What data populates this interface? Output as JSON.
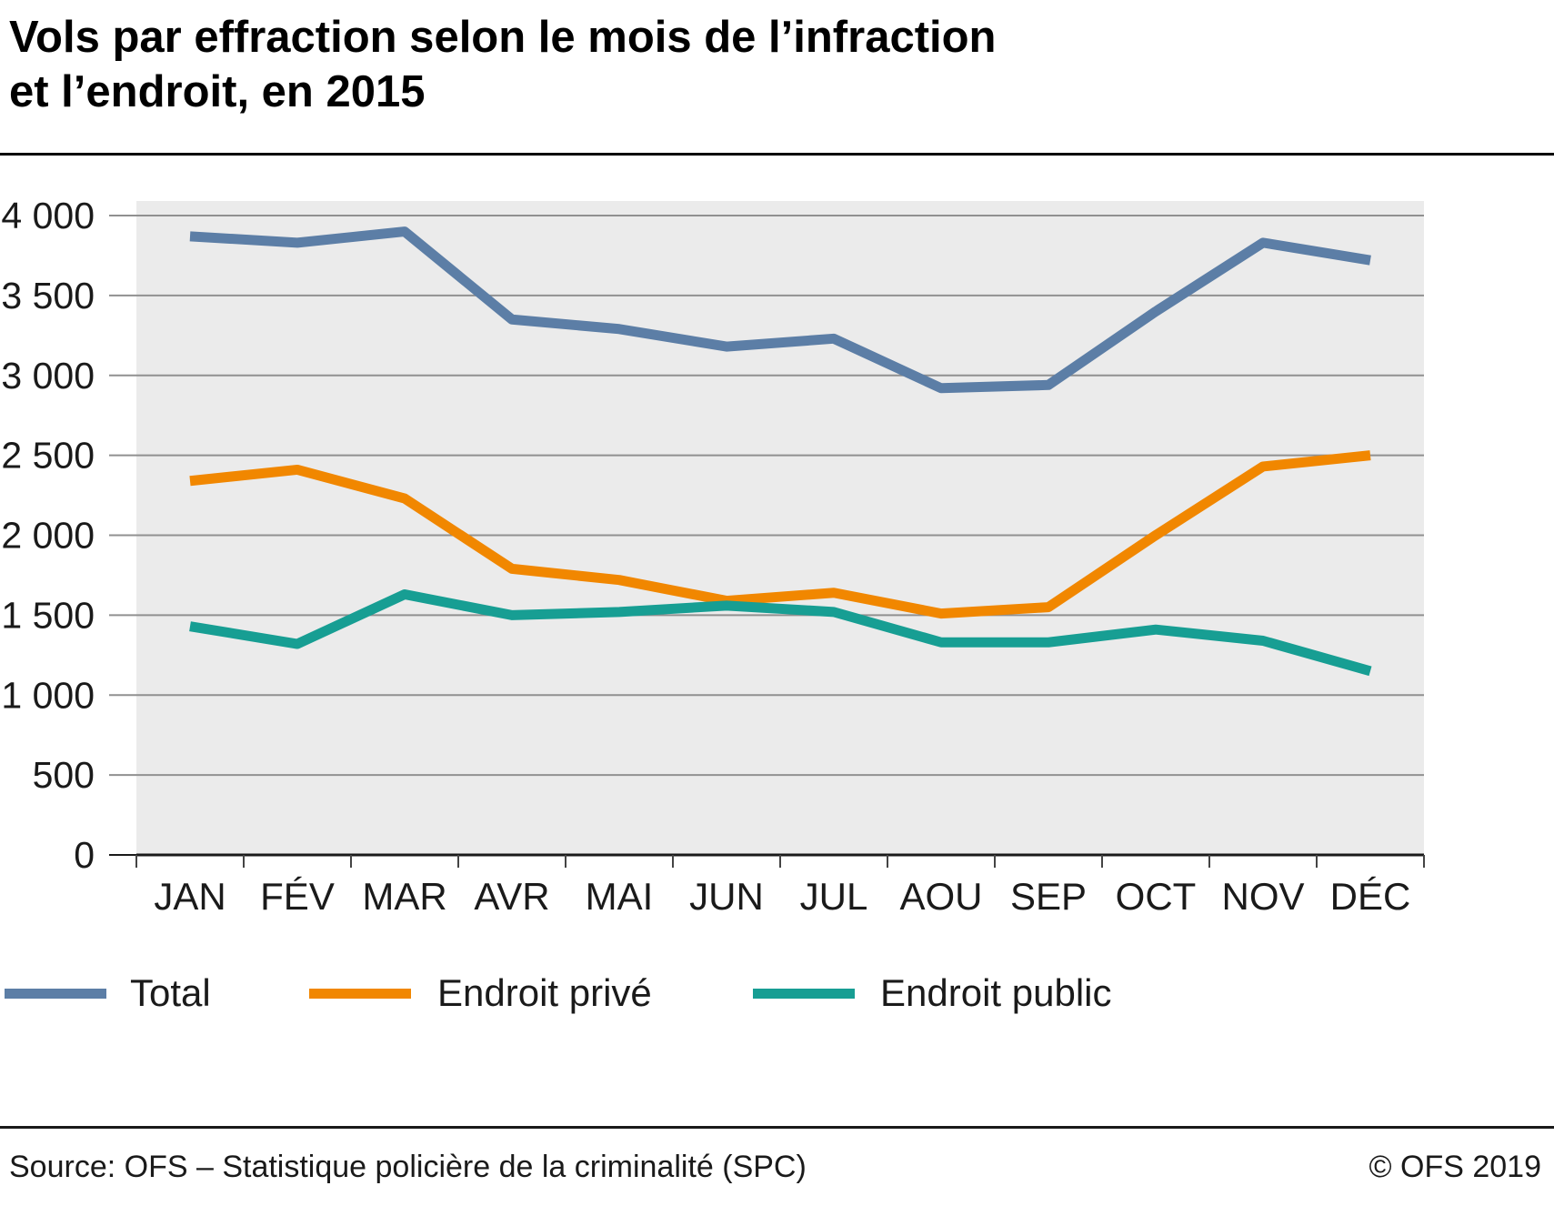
{
  "header": {
    "title_line1": "Vols par effraction selon le mois de l’infraction",
    "title_line2": "et l’endroit, en 2015"
  },
  "chart_data": {
    "type": "line",
    "title": "Vols par effraction selon le mois de l’infraction et l’endroit, en 2015",
    "categories": [
      "JAN",
      "FÉV",
      "MAR",
      "AVR",
      "MAI",
      "JUN",
      "JUL",
      "AOU",
      "SEP",
      "OCT",
      "NOV",
      "DÉC"
    ],
    "series": [
      {
        "name": "Total",
        "color": "#5c7ea6",
        "values": [
          3870,
          3830,
          3900,
          3350,
          3290,
          3180,
          3230,
          2920,
          2940,
          3400,
          3830,
          3720
        ]
      },
      {
        "name": "Endroit privé",
        "color": "#f18700",
        "values": [
          2340,
          2410,
          2230,
          1790,
          1720,
          1590,
          1640,
          1510,
          1550,
          2000,
          2430,
          2500
        ]
      },
      {
        "name": "Endroit public",
        "color": "#179e93",
        "values": [
          1430,
          1320,
          1630,
          1500,
          1520,
          1560,
          1520,
          1330,
          1330,
          1410,
          1340,
          1150
        ]
      }
    ],
    "xlabel": "",
    "ylabel": "",
    "ylim": [
      0,
      4000
    ],
    "ytick_step": 500,
    "ytick_labels": [
      "0",
      "500",
      "1 000",
      "1 500",
      "2 000",
      "2 500",
      "3 000",
      "3 500",
      "4 000"
    ],
    "grid": true,
    "grid_color": "#909090",
    "plot_bg": "#ebebeb",
    "legend_position": "bottom"
  },
  "footer": {
    "source": "Source: OFS – Statistique policière de la criminalité (SPC)",
    "copyright": "© OFS 2019"
  }
}
